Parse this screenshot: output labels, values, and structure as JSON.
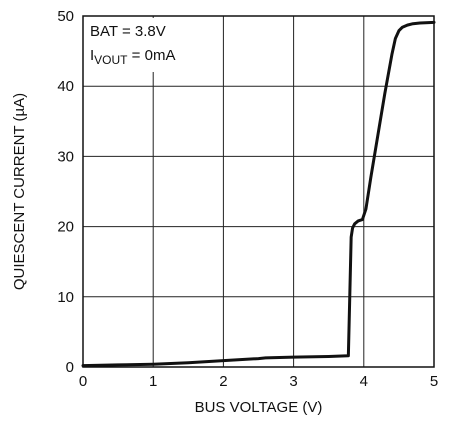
{
  "chart_data": {
    "type": "line",
    "title": "",
    "xlabel": "BUS VOLTAGE (V)",
    "ylabel": "QUIESCENT CURRENT (µA)",
    "xlim": [
      0,
      5
    ],
    "ylim": [
      0,
      50
    ],
    "x_ticks": [
      "0",
      "1",
      "2",
      "3",
      "4",
      "5"
    ],
    "y_ticks": [
      "0",
      "10",
      "20",
      "30",
      "40",
      "50"
    ],
    "grid": true,
    "annotations": {
      "line1": "BAT = 3.8V",
      "line2_main": "I",
      "line2_sub": "VOUT",
      "line2_rest": " = 0mA"
    },
    "series": [
      {
        "color": "#111111",
        "x": [
          0,
          0.5,
          1.0,
          1.5,
          2.0,
          2.5,
          2.6,
          3.0,
          3.5,
          3.78,
          3.8,
          3.82,
          3.84,
          3.87,
          3.92,
          3.98,
          4.03,
          4.1,
          4.2,
          4.3,
          4.4,
          4.45,
          4.5,
          4.55,
          4.62,
          4.7,
          4.8,
          5.0
        ],
        "y": [
          0.2,
          0.3,
          0.4,
          0.6,
          0.9,
          1.2,
          1.3,
          1.4,
          1.5,
          1.6,
          10.0,
          18.5,
          19.8,
          20.4,
          20.8,
          21.0,
          22.5,
          27.0,
          33.0,
          39.0,
          44.5,
          46.8,
          47.9,
          48.4,
          48.7,
          48.9,
          49.0,
          49.1
        ]
      }
    ]
  }
}
